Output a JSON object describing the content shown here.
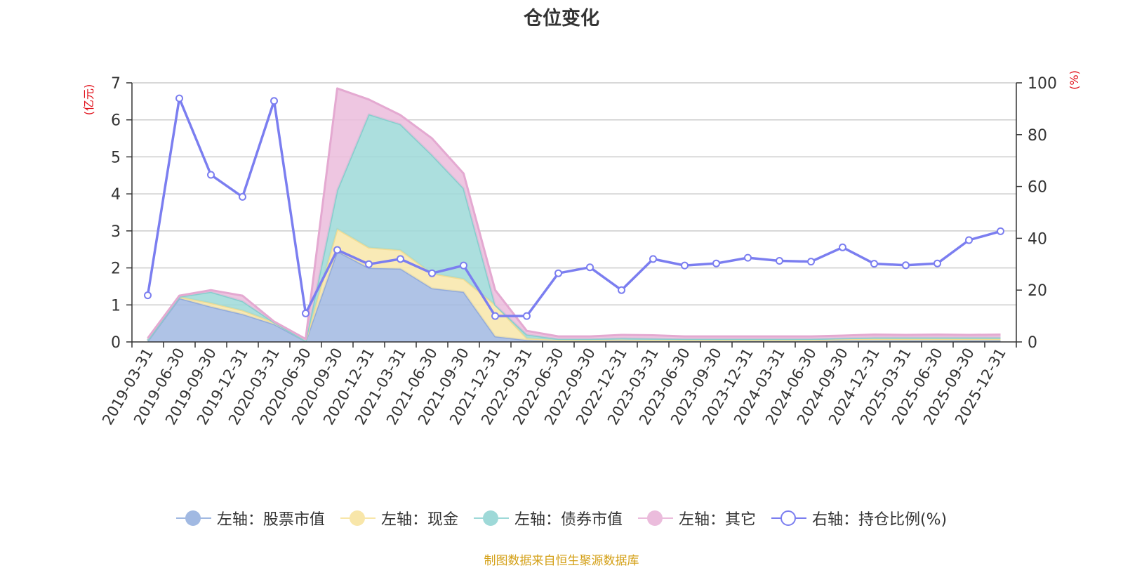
{
  "title": "仓位变化",
  "source_note": "制图数据来自恒生聚源数据库",
  "chart_data": {
    "type": "area",
    "title": "仓位变化",
    "x": [
      "2019-03-31",
      "2019-06-30",
      "2019-09-30",
      "2019-12-31",
      "2020-03-31",
      "2020-06-30",
      "2020-09-30",
      "2020-12-31",
      "2021-03-31",
      "2021-06-30",
      "2021-09-30",
      "2021-12-31",
      "2022-03-31",
      "2022-06-30",
      "2022-09-30",
      "2022-12-31",
      "2023-03-31",
      "2023-06-30",
      "2023-09-30",
      "2023-12-31",
      "2024-03-31",
      "2024-06-30",
      "2024-09-30",
      "2024-12-31",
      "2025-03-31",
      "2025-06-30",
      "2025-09-30",
      "2025-12-31"
    ],
    "y_left": {
      "label": "(亿元)",
      "range": [
        0,
        7
      ],
      "ticks": [
        "0",
        "1",
        "2",
        "3",
        "4",
        "5",
        "6",
        "7"
      ]
    },
    "y_right": {
      "label": "(%)",
      "range": [
        0,
        100
      ],
      "ticks": [
        "0",
        "20",
        "40",
        "60",
        "80",
        "100"
      ]
    },
    "stacked": true,
    "series": [
      {
        "name": "左轴：股票市值",
        "axis": "left",
        "kind": "area",
        "color": "#a1b9e2",
        "line_color": "#92abdb",
        "values": [
          0.02,
          1.18,
          0.95,
          0.75,
          0.48,
          0.02,
          2.45,
          2.0,
          1.98,
          1.45,
          1.35,
          0.15,
          0.05,
          0.02,
          0.02,
          0.03,
          0.02,
          0.02,
          0.02,
          0.02,
          0.02,
          0.02,
          0.04,
          0.04,
          0.04,
          0.04,
          0.04,
          0.04
        ]
      },
      {
        "name": "左轴：现金",
        "axis": "left",
        "kind": "area",
        "color": "#f8e6a9",
        "line_color": "#f2dc93",
        "values": [
          0.03,
          0.04,
          0.1,
          0.1,
          0.05,
          0.01,
          0.6,
          0.55,
          0.5,
          0.4,
          0.35,
          0.85,
          0.05,
          0.03,
          0.03,
          0.03,
          0.03,
          0.03,
          0.03,
          0.03,
          0.03,
          0.03,
          0.03,
          0.04,
          0.04,
          0.04,
          0.04,
          0.04
        ]
      },
      {
        "name": "左轴：债券市值",
        "axis": "left",
        "kind": "area",
        "color": "#9ed9d8",
        "line_color": "#86cfcd",
        "values": [
          0,
          0,
          0.3,
          0.25,
          0,
          0,
          1.05,
          3.6,
          3.4,
          3.2,
          2.45,
          0,
          0.1,
          0.03,
          0.03,
          0.04,
          0.04,
          0.03,
          0.03,
          0.03,
          0.03,
          0.03,
          0.03,
          0.04,
          0.04,
          0.04,
          0.04,
          0.04
        ]
      },
      {
        "name": "左轴：其它",
        "axis": "left",
        "kind": "area",
        "color": "#ebbcdc",
        "line_color": "#e4a9d1",
        "values": [
          0.05,
          0.03,
          0.05,
          0.15,
          0.02,
          0.05,
          2.75,
          0.4,
          0.25,
          0.45,
          0.4,
          0.4,
          0.1,
          0.07,
          0.07,
          0.09,
          0.09,
          0.07,
          0.07,
          0.07,
          0.07,
          0.07,
          0.07,
          0.08,
          0.07,
          0.08,
          0.07,
          0.08
        ]
      },
      {
        "name": "右轴：持仓比例(%)",
        "axis": "right",
        "kind": "line",
        "color": "#7b7ef0",
        "values": [
          18,
          94,
          64.5,
          56,
          93,
          11,
          35.5,
          30,
          32,
          26.5,
          29.5,
          10,
          10,
          26.5,
          28.8,
          20,
          32,
          29.5,
          30.3,
          32.5,
          31.3,
          31,
          36.5,
          30.2,
          29.6,
          30.3,
          39.3,
          42.7
        ]
      }
    ]
  }
}
